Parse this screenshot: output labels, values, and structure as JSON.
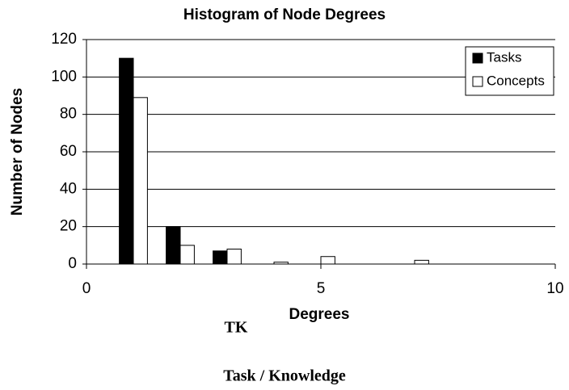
{
  "chart_data": {
    "type": "bar",
    "title": "Histogram of Node Degrees",
    "x_label": "Degrees",
    "y_label": "Number of Nodes",
    "annotations": [
      "TK",
      "Task / Knowledge"
    ],
    "x": [
      1,
      2,
      3,
      4,
      5,
      7
    ],
    "series": [
      {
        "name": "Tasks",
        "color": "#000000",
        "values": [
          110,
          20,
          7,
          0,
          0,
          0
        ]
      },
      {
        "name": "Concepts",
        "color": "#ffffff",
        "values": [
          89,
          10,
          8,
          1,
          4,
          2
        ]
      }
    ],
    "xlim": [
      0,
      10
    ],
    "xticks": [
      0,
      5,
      10
    ],
    "ylim": [
      0,
      120
    ],
    "yticks": [
      0,
      20,
      40,
      60,
      80,
      100,
      120
    ],
    "grid": true,
    "legend": "upper right"
  }
}
